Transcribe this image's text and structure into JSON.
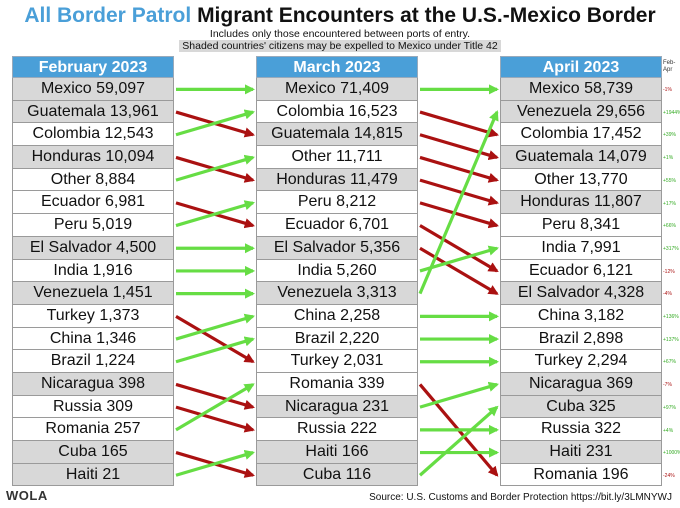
{
  "title_part1": "All Border Patrol",
  "title_part2": "Migrant Encounters at the U.S.-Mexico Border",
  "subtitle1": "Includes only those encountered between ports of entry.",
  "subtitle2": "Shaded countries' citizens may be expelled to Mexico under Title 42",
  "pct_header": "Feb-Apr",
  "source": "Source: U.S. Customs and Border Protection https://bit.ly/3LMNYWJ",
  "logo": "WOLA",
  "colors": {
    "header": "#4a9fd8",
    "shade": "#d8d8d8",
    "increase": "#66dd44",
    "decrease": "#aa1111"
  },
  "chart_data": {
    "type": "table",
    "columns": [
      {
        "header": "February 2023",
        "rows": [
          {
            "country": "Mexico",
            "value": "59,097",
            "shaded": true
          },
          {
            "country": "Guatemala",
            "value": "13,961",
            "shaded": true
          },
          {
            "country": "Colombia",
            "value": "12,543",
            "shaded": false
          },
          {
            "country": "Honduras",
            "value": "10,094",
            "shaded": true
          },
          {
            "country": "Other",
            "value": "8,884",
            "shaded": false
          },
          {
            "country": "Ecuador",
            "value": "6,981",
            "shaded": false
          },
          {
            "country": "Peru",
            "value": "5,019",
            "shaded": false
          },
          {
            "country": "El Salvador",
            "value": "4,500",
            "shaded": true
          },
          {
            "country": "India",
            "value": "1,916",
            "shaded": false
          },
          {
            "country": "Venezuela",
            "value": "1,451",
            "shaded": true
          },
          {
            "country": "Turkey",
            "value": "1,373",
            "shaded": false
          },
          {
            "country": "China",
            "value": "1,346",
            "shaded": false
          },
          {
            "country": "Brazil",
            "value": "1,224",
            "shaded": false
          },
          {
            "country": "Nicaragua",
            "value": "398",
            "shaded": true
          },
          {
            "country": "Russia",
            "value": "309",
            "shaded": false
          },
          {
            "country": "Romania",
            "value": "257",
            "shaded": false
          },
          {
            "country": "Cuba",
            "value": "165",
            "shaded": true
          },
          {
            "country": "Haiti",
            "value": "21",
            "shaded": true
          }
        ]
      },
      {
        "header": "March 2023",
        "rows": [
          {
            "country": "Mexico",
            "value": "71,409",
            "shaded": true
          },
          {
            "country": "Colombia",
            "value": "16,523",
            "shaded": false
          },
          {
            "country": "Guatemala",
            "value": "14,815",
            "shaded": true
          },
          {
            "country": "Other",
            "value": "11,711",
            "shaded": false
          },
          {
            "country": "Honduras",
            "value": "11,479",
            "shaded": true
          },
          {
            "country": "Peru",
            "value": "8,212",
            "shaded": false
          },
          {
            "country": "Ecuador",
            "value": "6,701",
            "shaded": false
          },
          {
            "country": "El Salvador",
            "value": "5,356",
            "shaded": true
          },
          {
            "country": "India",
            "value": "5,260",
            "shaded": false
          },
          {
            "country": "Venezuela",
            "value": "3,313",
            "shaded": true
          },
          {
            "country": "China",
            "value": "2,258",
            "shaded": false
          },
          {
            "country": "Brazil",
            "value": "2,220",
            "shaded": false
          },
          {
            "country": "Turkey",
            "value": "2,031",
            "shaded": false
          },
          {
            "country": "Romania",
            "value": "339",
            "shaded": false
          },
          {
            "country": "Nicaragua",
            "value": "231",
            "shaded": true
          },
          {
            "country": "Russia",
            "value": "222",
            "shaded": false
          },
          {
            "country": "Haiti",
            "value": "166",
            "shaded": true
          },
          {
            "country": "Cuba",
            "value": "116",
            "shaded": true
          }
        ]
      },
      {
        "header": "April 2023",
        "rows": [
          {
            "country": "Mexico",
            "value": "58,739",
            "shaded": true,
            "pct": "-1%"
          },
          {
            "country": "Venezuela",
            "value": "29,656",
            "shaded": true,
            "pct": "+1944%"
          },
          {
            "country": "Colombia",
            "value": "17,452",
            "shaded": false,
            "pct": "+39%"
          },
          {
            "country": "Guatemala",
            "value": "14,079",
            "shaded": true,
            "pct": "+1%"
          },
          {
            "country": "Other",
            "value": "13,770",
            "shaded": false,
            "pct": "+55%"
          },
          {
            "country": "Honduras",
            "value": "11,807",
            "shaded": true,
            "pct": "+17%"
          },
          {
            "country": "Peru",
            "value": "8,341",
            "shaded": false,
            "pct": "+66%"
          },
          {
            "country": "India",
            "value": "7,991",
            "shaded": false,
            "pct": "+317%"
          },
          {
            "country": "Ecuador",
            "value": "6,121",
            "shaded": false,
            "pct": "-12%"
          },
          {
            "country": "El Salvador",
            "value": "4,328",
            "shaded": true,
            "pct": "-4%"
          },
          {
            "country": "China",
            "value": "3,182",
            "shaded": false,
            "pct": "+136%"
          },
          {
            "country": "Brazil",
            "value": "2,898",
            "shaded": false,
            "pct": "+137%"
          },
          {
            "country": "Turkey",
            "value": "2,294",
            "shaded": false,
            "pct": "+67%"
          },
          {
            "country": "Nicaragua",
            "value": "369",
            "shaded": true,
            "pct": "-7%"
          },
          {
            "country": "Cuba",
            "value": "325",
            "shaded": true,
            "pct": "+97%"
          },
          {
            "country": "Russia",
            "value": "322",
            "shaded": false,
            "pct": "+4%"
          },
          {
            "country": "Haiti",
            "value": "231",
            "shaded": true,
            "pct": "+1000%"
          },
          {
            "country": "Romania",
            "value": "196",
            "shaded": false,
            "pct": "-24%"
          }
        ]
      }
    ]
  }
}
